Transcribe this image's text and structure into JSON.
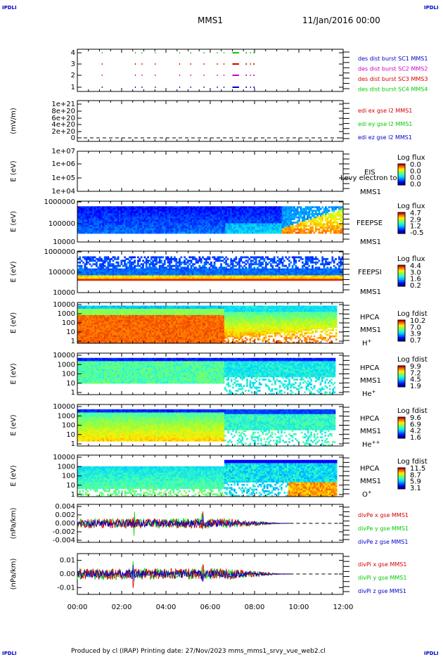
{
  "corner_labels": {
    "tl": "IPDLI",
    "tr": "IPDLI",
    "bl": "IPDLI",
    "br": "IPDLI"
  },
  "header": {
    "spacecraft": "MMS1",
    "date": "11/Jan/2016 00:00"
  },
  "footer": "Produced by cl (IRAP)    Printing date: 27/Nov/2023    mms_mms1_srvy_vue_web2.cl",
  "time_axis": {
    "ticks": [
      "00:00",
      "02:00",
      "04:00",
      "06:00",
      "08:00",
      "10:00",
      "12:00"
    ]
  },
  "colors": {
    "red": "#d40000",
    "green": "#00cc00",
    "blue": "#0000cc",
    "magenta": "#cc00cc"
  },
  "chart_data": [
    {
      "type": "scatter",
      "id": "burst",
      "ylabel": "",
      "ytick_labels": [
        "1",
        "2",
        "3",
        "4"
      ],
      "series": [
        {
          "name": "des dist burst SC1 MMS1",
          "y": 1,
          "color": "#0000cc"
        },
        {
          "name": "des dist burst SC2 MMS2",
          "y": 2,
          "color": "#cc00cc"
        },
        {
          "name": "des dist burst SC3 MMS3",
          "y": 3,
          "color": "#d40000"
        },
        {
          "name": "des dist burst SC4 MMS4",
          "y": 4,
          "color": "#00cc00"
        }
      ],
      "burst_hours": [
        [
          1.1,
          1.13
        ],
        [
          2.6,
          2.62
        ],
        [
          2.9,
          2.92
        ],
        [
          3.5,
          3.52
        ],
        [
          4.6,
          4.63
        ],
        [
          5.1,
          5.12
        ],
        [
          5.7,
          5.73
        ],
        [
          6.3,
          6.32
        ],
        [
          6.6,
          6.62
        ],
        [
          7.0,
          7.3
        ],
        [
          7.6,
          7.65
        ],
        [
          7.8,
          7.82
        ],
        [
          7.95,
          8.0
        ]
      ]
    },
    {
      "type": "line",
      "id": "edi",
      "ylabel": "(mV/m)",
      "ytick_labels": [
        "1e+21",
        "8e+20",
        "6e+20",
        "4e+20",
        "2e+20",
        "0"
      ],
      "series": [
        {
          "name": "edi ex gse l2 MMS1",
          "color": "#d40000"
        },
        {
          "name": "edi ey gse l2 MMS1",
          "color": "#00cc00"
        },
        {
          "name": "edi ez gse l2 MMS1",
          "color": "#0000cc"
        }
      ]
    },
    {
      "type": "heatmap",
      "id": "eis",
      "ylabel": "E (eV)",
      "ytick_labels": [
        "1e+07",
        "1e+06",
        "1e+05",
        "1e+04"
      ],
      "labels": [
        "EIS",
        "MMS1"
      ],
      "overlap_label": "Levy electron to",
      "colorbar": {
        "title": "Log flux",
        "ticks": [
          "0.0",
          "0.0",
          "0.0",
          "0.0"
        ]
      }
    },
    {
      "type": "heatmap",
      "id": "feepse",
      "ylabel": "E (eV)",
      "ytick_labels": [
        "1000000",
        "100000",
        "10000"
      ],
      "labels": [
        "FEEPSE",
        "MMS1"
      ],
      "colorbar": {
        "title": "Log flux",
        "ticks": [
          "4.7",
          "2.9",
          "1.2",
          "-0.5"
        ]
      }
    },
    {
      "type": "heatmap",
      "id": "feepsi",
      "ylabel": "E (eV)",
      "ytick_labels": [
        "1000000",
        "100000",
        "10000"
      ],
      "labels": [
        "FEEPSI",
        "MMS1"
      ],
      "colorbar": {
        "title": "Log flux",
        "ticks": [
          "4.4",
          "3.0",
          "1.6",
          "0.2"
        ]
      }
    },
    {
      "type": "heatmap",
      "id": "hpca_h",
      "ylabel": "E (eV)",
      "ytick_labels": [
        "10000",
        "1000",
        "100",
        "10",
        "1"
      ],
      "labels": [
        "HPCA",
        "MMS1"
      ],
      "species": "H",
      "species_sup": "+",
      "colorbar": {
        "title": "Log fdist",
        "ticks": [
          "10.2",
          "7.0",
          "3.9",
          "0.7"
        ]
      }
    },
    {
      "type": "heatmap",
      "id": "hpca_he",
      "ylabel": "E (eV)",
      "ytick_labels": [
        "10000",
        "1000",
        "100",
        "10",
        "1"
      ],
      "labels": [
        "HPCA",
        "MMS1"
      ],
      "species": "He",
      "species_sup": "+",
      "colorbar": {
        "title": "Log fdist",
        "ticks": [
          "9.9",
          "7.2",
          "4.5",
          "1.9"
        ]
      }
    },
    {
      "type": "heatmap",
      "id": "hpca_hepp",
      "ylabel": "E (eV)",
      "ytick_labels": [
        "10000",
        "1000",
        "100",
        "10",
        "1"
      ],
      "labels": [
        "HPCA",
        "MMS1"
      ],
      "species": "He",
      "species_sup": "++",
      "colorbar": {
        "title": "Log fdist",
        "ticks": [
          "9.6",
          "6.9",
          "4.2",
          "1.6"
        ]
      }
    },
    {
      "type": "heatmap",
      "id": "hpca_o",
      "ylabel": "E (eV)",
      "ytick_labels": [
        "10000",
        "1000",
        "100",
        "10",
        "1"
      ],
      "labels": [
        "HPCA",
        "MMS1"
      ],
      "species": "O",
      "species_sup": "+",
      "colorbar": {
        "title": "Log fdist",
        "ticks": [
          "11.5",
          "8.7",
          "5.9",
          "3.1"
        ]
      }
    },
    {
      "type": "line",
      "id": "divpe",
      "ylabel": "(nPa/km)",
      "ytick_labels": [
        "0.004",
        "0.002",
        "0.000",
        "-0.002",
        "-0.004"
      ],
      "ylim": [
        -0.0045,
        0.0045
      ],
      "series": [
        {
          "name": "divPe x gse MMS1",
          "color": "#d40000"
        },
        {
          "name": "divPe y gse MMS1",
          "color": "#00cc00"
        },
        {
          "name": "divPe z gse MMS1",
          "color": "#0000cc"
        }
      ]
    },
    {
      "type": "line",
      "id": "divpi",
      "ylabel": "(nPa/km)",
      "ytick_labels": [
        "0.01",
        "0.00",
        "-0.01"
      ],
      "ylim": [
        -0.015,
        0.015
      ],
      "series": [
        {
          "name": "divPi x gse MMS1",
          "color": "#d40000"
        },
        {
          "name": "divPi y gse MMS1",
          "color": "#00cc00"
        },
        {
          "name": "divPi z gse MMS1",
          "color": "#0000cc"
        }
      ]
    }
  ]
}
